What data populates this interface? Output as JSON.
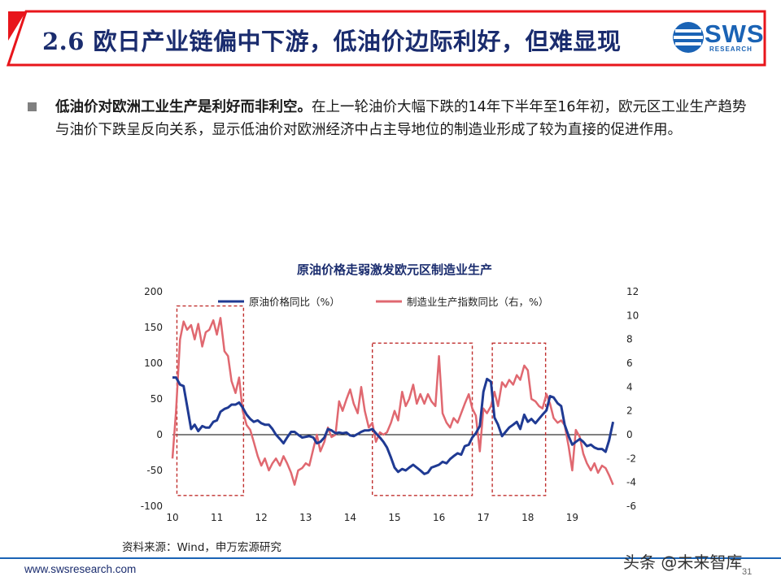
{
  "header": {
    "title": "2.6 欧日产业链偏中下游，低油价边际利好，但难显现",
    "logo_text": "SWS",
    "logo_sub": "RESEARCH"
  },
  "content": {
    "bold_lead": "低油价对欧洲工业生产是利好而非利空。",
    "text": "在上一轮油价大幅下跌的14年下半年至16年初，欧元区工业生产趋势与油价下跌呈反向关系，显示低油价对欧洲经济中占主导地位的制造业形成了较为直接的促进作用。"
  },
  "source": "资料来源：Wind，申万宏源研究",
  "footer": {
    "url": "www.swsresearch.com",
    "watermark": "头条 @未来智库",
    "page": "31"
  },
  "colors": {
    "brand_red": "#e8151b",
    "brand_navy": "#1a2c6e",
    "series_oil": "#1f3a93",
    "series_mfg": "#e06870",
    "box": "#c0302f"
  },
  "chart_data": {
    "type": "line",
    "title": "原油价格走弱激发欧元区制造业生产",
    "x_ticks": [
      "10",
      "11",
      "12",
      "13",
      "14",
      "15",
      "16",
      "17",
      "18",
      "19"
    ],
    "x_range": [
      2010.0,
      2020.0
    ],
    "y_left": {
      "range": [
        -100,
        200
      ],
      "ticks": [
        "200",
        "150",
        "100",
        "50",
        "0",
        "-50",
        "-100"
      ]
    },
    "y_right": {
      "range": [
        -6,
        12
      ],
      "ticks": [
        "12",
        "10",
        "8",
        "6",
        "4",
        "2",
        "0",
        "-2",
        "-4",
        "-6"
      ]
    },
    "grid": false,
    "legend_position": "top",
    "series": [
      {
        "name": "原油价格同比（%）",
        "axis": "left",
        "points": [
          [
            2010.0,
            80
          ],
          [
            2010.08,
            80
          ],
          [
            2010.17,
            70
          ],
          [
            2010.25,
            68
          ],
          [
            2010.33,
            40
          ],
          [
            2010.42,
            8
          ],
          [
            2010.5,
            14
          ],
          [
            2010.58,
            5
          ],
          [
            2010.67,
            12
          ],
          [
            2010.75,
            10
          ],
          [
            2010.83,
            10
          ],
          [
            2010.92,
            18
          ],
          [
            2011.0,
            20
          ],
          [
            2011.08,
            32
          ],
          [
            2011.17,
            36
          ],
          [
            2011.25,
            38
          ],
          [
            2011.33,
            42
          ],
          [
            2011.42,
            42
          ],
          [
            2011.5,
            45
          ],
          [
            2011.58,
            38
          ],
          [
            2011.67,
            28
          ],
          [
            2011.75,
            22
          ],
          [
            2011.83,
            18
          ],
          [
            2011.92,
            20
          ],
          [
            2012.0,
            16
          ],
          [
            2012.08,
            14
          ],
          [
            2012.17,
            14
          ],
          [
            2012.25,
            8
          ],
          [
            2012.33,
            0
          ],
          [
            2012.42,
            -6
          ],
          [
            2012.5,
            -12
          ],
          [
            2012.58,
            -4
          ],
          [
            2012.67,
            4
          ],
          [
            2012.75,
            4
          ],
          [
            2012.83,
            0
          ],
          [
            2012.92,
            -4
          ],
          [
            2013.0,
            -3
          ],
          [
            2013.08,
            -2
          ],
          [
            2013.17,
            -4
          ],
          [
            2013.25,
            -12
          ],
          [
            2013.33,
            -10
          ],
          [
            2013.42,
            -4
          ],
          [
            2013.5,
            8
          ],
          [
            2013.58,
            6
          ],
          [
            2013.67,
            2
          ],
          [
            2013.75,
            3
          ],
          [
            2013.83,
            2
          ],
          [
            2013.92,
            3
          ],
          [
            2014.0,
            -1
          ],
          [
            2014.08,
            -2
          ],
          [
            2014.17,
            1
          ],
          [
            2014.25,
            4
          ],
          [
            2014.33,
            6
          ],
          [
            2014.42,
            6
          ],
          [
            2014.5,
            8
          ],
          [
            2014.58,
            2
          ],
          [
            2014.67,
            -4
          ],
          [
            2014.75,
            -10
          ],
          [
            2014.83,
            -18
          ],
          [
            2014.92,
            -32
          ],
          [
            2015.0,
            -46
          ],
          [
            2015.08,
            -52
          ],
          [
            2015.17,
            -48
          ],
          [
            2015.25,
            -50
          ],
          [
            2015.33,
            -46
          ],
          [
            2015.42,
            -42
          ],
          [
            2015.5,
            -46
          ],
          [
            2015.58,
            -50
          ],
          [
            2015.67,
            -55
          ],
          [
            2015.75,
            -53
          ],
          [
            2015.83,
            -46
          ],
          [
            2015.92,
            -44
          ],
          [
            2016.0,
            -42
          ],
          [
            2016.08,
            -38
          ],
          [
            2016.17,
            -40
          ],
          [
            2016.25,
            -34
          ],
          [
            2016.33,
            -30
          ],
          [
            2016.42,
            -26
          ],
          [
            2016.5,
            -28
          ],
          [
            2016.58,
            -16
          ],
          [
            2016.67,
            -14
          ],
          [
            2016.75,
            -4
          ],
          [
            2016.83,
            2
          ],
          [
            2016.92,
            12
          ],
          [
            2017.0,
            60
          ],
          [
            2017.08,
            78
          ],
          [
            2017.17,
            74
          ],
          [
            2017.25,
            24
          ],
          [
            2017.33,
            14
          ],
          [
            2017.42,
            -2
          ],
          [
            2017.5,
            4
          ],
          [
            2017.58,
            10
          ],
          [
            2017.67,
            14
          ],
          [
            2017.75,
            18
          ],
          [
            2017.83,
            8
          ],
          [
            2017.92,
            28
          ],
          [
            2018.0,
            18
          ],
          [
            2018.08,
            22
          ],
          [
            2018.17,
            16
          ],
          [
            2018.25,
            22
          ],
          [
            2018.33,
            28
          ],
          [
            2018.42,
            34
          ],
          [
            2018.5,
            54
          ],
          [
            2018.58,
            52
          ],
          [
            2018.67,
            44
          ],
          [
            2018.75,
            40
          ],
          [
            2018.83,
            14
          ],
          [
            2018.92,
            -2
          ],
          [
            2019.0,
            -14
          ],
          [
            2019.08,
            -10
          ],
          [
            2019.17,
            -6
          ],
          [
            2019.25,
            -10
          ],
          [
            2019.33,
            -16
          ],
          [
            2019.42,
            -14
          ],
          [
            2019.5,
            -18
          ],
          [
            2019.58,
            -20
          ],
          [
            2019.67,
            -20
          ],
          [
            2019.75,
            -24
          ],
          [
            2019.83,
            -8
          ],
          [
            2019.92,
            18
          ]
        ]
      },
      {
        "name": "制造业生产指数同比（右，%）",
        "axis": "right",
        "points": [
          [
            2010.0,
            -2
          ],
          [
            2010.08,
            2
          ],
          [
            2010.17,
            8
          ],
          [
            2010.25,
            9.5
          ],
          [
            2010.33,
            8.8
          ],
          [
            2010.42,
            9.2
          ],
          [
            2010.5,
            8.0
          ],
          [
            2010.58,
            9.3
          ],
          [
            2010.67,
            7.4
          ],
          [
            2010.75,
            8.6
          ],
          [
            2010.83,
            8.8
          ],
          [
            2010.92,
            9.6
          ],
          [
            2011.0,
            8.4
          ],
          [
            2011.08,
            9.8
          ],
          [
            2011.17,
            7.0
          ],
          [
            2011.25,
            6.6
          ],
          [
            2011.33,
            4.5
          ],
          [
            2011.42,
            3.5
          ],
          [
            2011.5,
            4.8
          ],
          [
            2011.58,
            2.0
          ],
          [
            2011.67,
            0.8
          ],
          [
            2011.75,
            0.4
          ],
          [
            2011.83,
            -0.6
          ],
          [
            2011.92,
            -1.8
          ],
          [
            2012.0,
            -2.6
          ],
          [
            2012.08,
            -2.0
          ],
          [
            2012.17,
            -3.0
          ],
          [
            2012.25,
            -2.4
          ],
          [
            2012.33,
            -2.0
          ],
          [
            2012.42,
            -2.6
          ],
          [
            2012.5,
            -1.8
          ],
          [
            2012.58,
            -2.4
          ],
          [
            2012.67,
            -3.2
          ],
          [
            2012.75,
            -4.2
          ],
          [
            2012.83,
            -3.0
          ],
          [
            2012.92,
            -2.8
          ],
          [
            2013.0,
            -2.4
          ],
          [
            2013.08,
            -2.6
          ],
          [
            2013.17,
            -1.2
          ],
          [
            2013.25,
            0.0
          ],
          [
            2013.33,
            -1.4
          ],
          [
            2013.42,
            -0.6
          ],
          [
            2013.5,
            0.6
          ],
          [
            2013.58,
            -0.2
          ],
          [
            2013.67,
            0.0
          ],
          [
            2013.75,
            2.8
          ],
          [
            2013.83,
            2.0
          ],
          [
            2013.92,
            3.0
          ],
          [
            2014.0,
            3.8
          ],
          [
            2014.08,
            2.6
          ],
          [
            2014.17,
            1.8
          ],
          [
            2014.25,
            4.0
          ],
          [
            2014.33,
            2.0
          ],
          [
            2014.42,
            0.6
          ],
          [
            2014.5,
            1.0
          ],
          [
            2014.58,
            -0.6
          ],
          [
            2014.67,
            0.2
          ],
          [
            2014.75,
            0.0
          ],
          [
            2014.83,
            0.2
          ],
          [
            2014.92,
            1.0
          ],
          [
            2015.0,
            2.0
          ],
          [
            2015.08,
            1.2
          ],
          [
            2015.17,
            3.6
          ],
          [
            2015.25,
            2.4
          ],
          [
            2015.33,
            3.0
          ],
          [
            2015.42,
            4.2
          ],
          [
            2015.5,
            2.6
          ],
          [
            2015.58,
            3.4
          ],
          [
            2015.67,
            2.6
          ],
          [
            2015.75,
            3.4
          ],
          [
            2015.83,
            2.8
          ],
          [
            2015.92,
            2.4
          ],
          [
            2016.0,
            6.6
          ],
          [
            2016.08,
            1.8
          ],
          [
            2016.17,
            1.0
          ],
          [
            2016.25,
            0.6
          ],
          [
            2016.33,
            1.4
          ],
          [
            2016.42,
            1.0
          ],
          [
            2016.5,
            1.8
          ],
          [
            2016.58,
            2.6
          ],
          [
            2016.67,
            3.4
          ],
          [
            2016.75,
            2.2
          ],
          [
            2016.83,
            1.6
          ],
          [
            2016.92,
            -1.4
          ],
          [
            2017.0,
            2.2
          ],
          [
            2017.08,
            1.8
          ],
          [
            2017.17,
            2.4
          ],
          [
            2017.25,
            3.6
          ],
          [
            2017.33,
            2.4
          ],
          [
            2017.42,
            4.4
          ],
          [
            2017.5,
            4.0
          ],
          [
            2017.58,
            4.6
          ],
          [
            2017.67,
            4.2
          ],
          [
            2017.75,
            5.0
          ],
          [
            2017.83,
            4.6
          ],
          [
            2017.92,
            5.8
          ],
          [
            2018.0,
            5.4
          ],
          [
            2018.08,
            3.0
          ],
          [
            2018.17,
            2.8
          ],
          [
            2018.25,
            2.4
          ],
          [
            2018.33,
            2.2
          ],
          [
            2018.42,
            3.4
          ],
          [
            2018.5,
            2.6
          ],
          [
            2018.58,
            1.4
          ],
          [
            2018.67,
            1.0
          ],
          [
            2018.75,
            1.2
          ],
          [
            2018.83,
            0.8
          ],
          [
            2018.92,
            -1.0
          ],
          [
            2019.0,
            -3.0
          ],
          [
            2019.08,
            0.4
          ],
          [
            2019.17,
            -0.2
          ],
          [
            2019.25,
            -1.6
          ],
          [
            2019.33,
            -2.4
          ],
          [
            2019.42,
            -3.0
          ],
          [
            2019.5,
            -2.4
          ],
          [
            2019.58,
            -3.2
          ],
          [
            2019.67,
            -2.6
          ],
          [
            2019.75,
            -2.8
          ],
          [
            2019.83,
            -3.4
          ],
          [
            2019.92,
            -4.2
          ]
        ]
      }
    ],
    "highlight_boxes": [
      {
        "x": [
          2010.1,
          2011.6
        ],
        "y_left": [
          -85,
          180
        ]
      },
      {
        "x": [
          2014.5,
          2016.75
        ],
        "y_left": [
          -85,
          128
        ]
      },
      {
        "x": [
          2017.2,
          2018.4
        ],
        "y_left": [
          -85,
          128
        ]
      }
    ]
  }
}
